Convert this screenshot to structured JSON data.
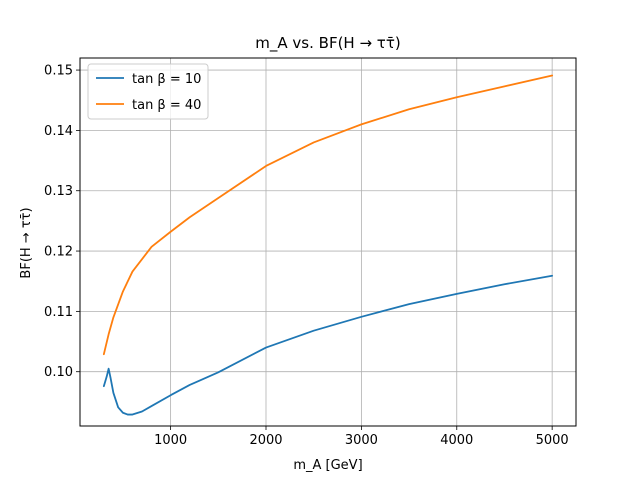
{
  "chart_data": {
    "type": "line",
    "title": "m_A vs. BF(H → ττ̄)",
    "xlabel": "m_A [GeV]",
    "ylabel": "BF(H → ττ̄)",
    "xlim": [
      50,
      5250
    ],
    "ylim": [
      0.091,
      0.152
    ],
    "xticks": [
      1000,
      2000,
      3000,
      4000,
      5000
    ],
    "yticks": [
      0.1,
      0.11,
      0.12,
      0.13,
      0.14,
      0.15
    ],
    "xtick_labels": [
      "1000",
      "2000",
      "3000",
      "4000",
      "5000"
    ],
    "ytick_labels": [
      "0.10",
      "0.11",
      "0.12",
      "0.13",
      "0.14",
      "0.15"
    ],
    "grid": true,
    "legend_position": "top-left",
    "series": [
      {
        "name": "tan β = 10",
        "color": "#1f77b4",
        "x": [
          300,
          330,
          350,
          370,
          400,
          450,
          500,
          550,
          600,
          700,
          800,
          1000,
          1200,
          1500,
          2000,
          2500,
          3000,
          3500,
          4000,
          4500,
          5000
        ],
        "y": [
          0.0976,
          0.0992,
          0.1005,
          0.099,
          0.0965,
          0.0941,
          0.0932,
          0.0929,
          0.0929,
          0.0934,
          0.0943,
          0.0961,
          0.0978,
          0.0999,
          0.104,
          0.1068,
          0.1091,
          0.1112,
          0.1129,
          0.1145,
          0.1159
        ]
      },
      {
        "name": "tan β = 40",
        "color": "#ff7f0e",
        "x": [
          300,
          350,
          400,
          500,
          600,
          800,
          1000,
          1200,
          1500,
          2000,
          2500,
          3000,
          3500,
          4000,
          4500,
          5000
        ],
        "y": [
          0.1029,
          0.1062,
          0.109,
          0.1133,
          0.1166,
          0.1207,
          0.1232,
          0.1256,
          0.1288,
          0.1341,
          0.138,
          0.141,
          0.1435,
          0.1455,
          0.1473,
          0.1491
        ]
      }
    ]
  }
}
